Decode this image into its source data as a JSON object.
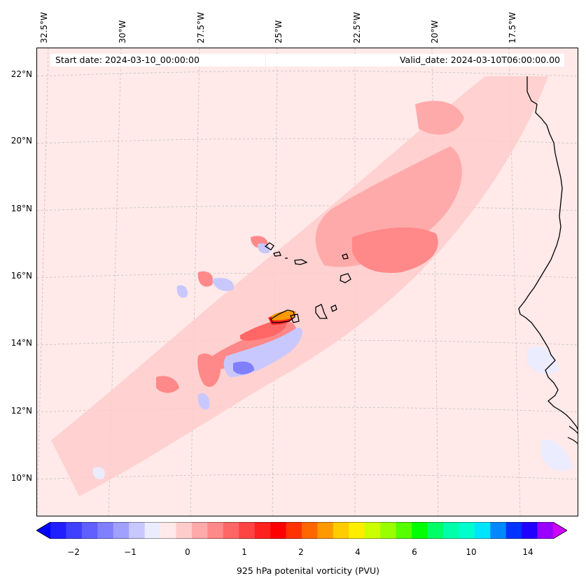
{
  "map": {
    "start_date": "Start date: 2024-03-10_00:00:00",
    "valid_date": "Valid_date: 2024-03-10T06:00:00.00",
    "lon_labels": [
      "32.5°W",
      "30°W",
      "27.5°W",
      "25°W",
      "22.5°W",
      "20°W",
      "17.5°W"
    ],
    "lat_labels": [
      "22°N",
      "20°N",
      "18°N",
      "16°N",
      "14°N",
      "12°N",
      "10°N"
    ],
    "region": "Cape Verde Islands and West African coast (Senegal / Mauritania)"
  },
  "colorbar": {
    "label": "925 hPa potenital vorticity (PVU)",
    "tick_labels": [
      "−2",
      "−1",
      "0",
      "1",
      "2",
      "4",
      "6",
      "10",
      "14"
    ],
    "colors": [
      "#0000ff",
      "#2020ff",
      "#4040ff",
      "#6060ff",
      "#8080ff",
      "#a0a0ff",
      "#c8c8ff",
      "#ececff",
      "#ffe9e9",
      "#ffcccc",
      "#ffaaaa",
      "#ff8888",
      "#ff6666",
      "#ff4444",
      "#ff2020",
      "#ff0000",
      "#ff3300",
      "#ff6600",
      "#ff9900",
      "#ffcc00",
      "#ffee00",
      "#ccff00",
      "#99ff00",
      "#55ff00",
      "#00ff00",
      "#00ff66",
      "#00ffaa",
      "#00ffcc",
      "#00e5ff",
      "#0088ff",
      "#0033ff",
      "#2200ff",
      "#9900ff",
      "#cc00ff"
    ]
  }
}
